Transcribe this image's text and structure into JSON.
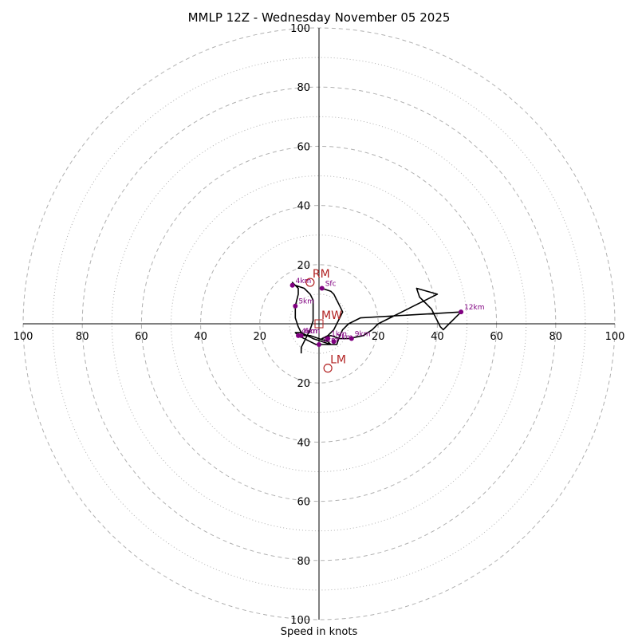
{
  "chart_data": {
    "type": "hodograph",
    "title": "MMLP 12Z - Wednesday November 05 2025",
    "xlabel": "Speed in knots",
    "range": [
      -100,
      100
    ],
    "ring_major": [
      20,
      40,
      60,
      80,
      100
    ],
    "ring_minor": [
      10,
      30,
      50,
      70,
      90
    ],
    "x_tick_labels": [
      "100",
      "80",
      "60",
      "40",
      "20",
      "20",
      "40",
      "60",
      "80",
      "100"
    ],
    "y_tick_labels": [
      "100",
      "80",
      "60",
      "40",
      "20",
      "20",
      "40",
      "60",
      "80",
      "100"
    ],
    "colors": {
      "trace": "#000000",
      "height_marker": "#800080",
      "motion_marker": "#b22222",
      "grid": "#b0b0b0"
    },
    "trace": [
      [
        1,
        12
      ],
      [
        4,
        11
      ],
      [
        5,
        10
      ],
      [
        6,
        8
      ],
      [
        7,
        6
      ],
      [
        8,
        4
      ],
      [
        7,
        2
      ],
      [
        6,
        0
      ],
      [
        5,
        -2
      ],
      [
        3,
        -4
      ],
      [
        1,
        -5
      ],
      [
        4,
        -4
      ],
      [
        7,
        -5
      ],
      [
        10,
        -5
      ],
      [
        15,
        -4
      ],
      [
        18,
        -2
      ],
      [
        20,
        0
      ],
      [
        24,
        2
      ],
      [
        28,
        4
      ],
      [
        32,
        6
      ],
      [
        36,
        8
      ],
      [
        40,
        10
      ],
      [
        33,
        12
      ],
      [
        34,
        9
      ],
      [
        36,
        7
      ],
      [
        38,
        5
      ],
      [
        39,
        3
      ],
      [
        41,
        -1
      ],
      [
        42,
        -2
      ],
      [
        44,
        0
      ],
      [
        46,
        2
      ],
      [
        48,
        4
      ],
      [
        14,
        2
      ],
      [
        10,
        0
      ],
      [
        8,
        -2
      ],
      [
        7,
        -4
      ],
      [
        6,
        -7
      ],
      [
        4,
        -7
      ],
      [
        1,
        -6
      ],
      [
        -2,
        -5
      ],
      [
        -4,
        -4
      ],
      [
        -6,
        -3
      ],
      [
        -8,
        -3
      ],
      [
        -7,
        -4
      ],
      [
        -5,
        -5
      ],
      [
        -3,
        -6
      ],
      [
        -1,
        -7
      ],
      [
        2,
        -7
      ],
      [
        4,
        -7
      ],
      [
        3,
        -6
      ],
      [
        0,
        -5
      ],
      [
        -3,
        -4
      ],
      [
        -5,
        -4
      ],
      [
        -6,
        -3
      ],
      [
        -7,
        -1
      ],
      [
        -8,
        2
      ],
      [
        -8,
        6
      ],
      [
        -7,
        10
      ],
      [
        -7,
        12
      ],
      [
        -8,
        13
      ],
      [
        -9,
        14
      ],
      [
        -8,
        13
      ],
      [
        -5,
        12
      ],
      [
        -3,
        10
      ],
      [
        -2,
        8
      ],
      [
        -2,
        4
      ],
      [
        -2,
        1
      ],
      [
        -3,
        -2
      ],
      [
        -4,
        -4
      ],
      [
        -6,
        -8
      ],
      [
        -6,
        -10
      ]
    ],
    "heights": [
      {
        "label": "Sfc",
        "u": 1,
        "v": 12
      },
      {
        "label": "1km",
        "u": 3,
        "v": -5
      },
      {
        "label": "2km",
        "u": 5,
        "v": -6
      },
      {
        "label": "3km",
        "u": 0,
        "v": -7
      },
      {
        "label": "4km",
        "u": -7,
        "v": -4
      },
      {
        "label": "5km",
        "u": -8,
        "v": 6
      },
      {
        "label": "4km",
        "u": -9,
        "v": 13
      },
      {
        "label": "6km",
        "u": -6,
        "v": -4
      },
      {
        "label": "9km",
        "u": 11,
        "v": -5
      },
      {
        "label": "12km",
        "u": 48,
        "v": 4
      }
    ],
    "motion_markers": [
      {
        "label": "RM",
        "u": -3,
        "v": 14,
        "shape": "circle"
      },
      {
        "label": "MW",
        "u": 0,
        "v": 0,
        "shape": "square"
      },
      {
        "label": "LM",
        "u": 3,
        "v": -15,
        "shape": "circle"
      }
    ]
  }
}
